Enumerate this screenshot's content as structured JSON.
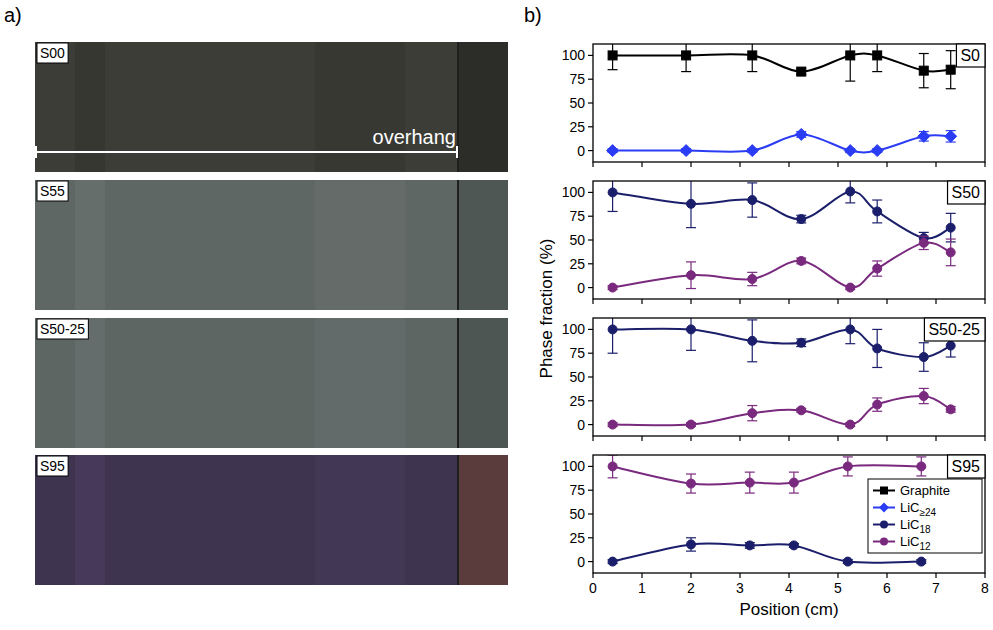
{
  "panel_labels": [
    "a)",
    "b)"
  ],
  "photos": [
    {
      "label": "S00"
    },
    {
      "label": "S55"
    },
    {
      "label": "S50-25"
    },
    {
      "label": "S95"
    }
  ],
  "overhang_label": "overhang",
  "ylabel": "Phase fraction (%)",
  "chart_data": [
    {
      "type": "line",
      "title": "S0",
      "x": [
        0.4,
        1.9,
        3.25,
        4.25,
        5.25,
        5.8,
        6.75,
        7.3
      ],
      "xlim": [
        0,
        8
      ],
      "xticks": [
        0,
        1,
        2,
        3,
        4,
        5,
        6,
        7,
        8
      ],
      "ylim": [
        -12,
        112
      ],
      "yticks": [
        0,
        25,
        50,
        75,
        100
      ],
      "tick_labels": "y",
      "series": [
        {
          "name": "Graphite",
          "color": "#000000",
          "marker": "square",
          "values": [
            100,
            100,
            100,
            83,
            100,
            100,
            84,
            85
          ],
          "errors": [
            15,
            17,
            17,
            3,
            27,
            17,
            18,
            20
          ]
        },
        {
          "name": "LiC≥24",
          "color": "#2b3cf5",
          "marker": "diamond",
          "values": [
            0,
            0,
            0,
            17,
            0,
            0,
            15,
            15
          ],
          "errors": [
            2,
            2,
            2,
            3,
            2,
            2,
            5,
            6
          ]
        }
      ]
    },
    {
      "type": "line",
      "title": "S50",
      "x": [
        0.4,
        2.0,
        3.25,
        4.25,
        5.25,
        5.8,
        6.75,
        7.3
      ],
      "xlim": [
        0,
        8
      ],
      "xticks": [
        0,
        1,
        2,
        3,
        4,
        5,
        6,
        7,
        8
      ],
      "ylim": [
        -12,
        112
      ],
      "yticks": [
        0,
        25,
        50,
        75,
        100
      ],
      "tick_labels": "y",
      "series": [
        {
          "name": "LiC18",
          "color": "#1b1f6b",
          "marker": "circle",
          "values": [
            100,
            88,
            92,
            72,
            101,
            80,
            52,
            63
          ],
          "errors": [
            20,
            25,
            18,
            4,
            12,
            12,
            6,
            15
          ]
        },
        {
          "name": "LiC12",
          "color": "#7a2a7e",
          "marker": "circle",
          "values": [
            0,
            13,
            9,
            28,
            0,
            20,
            47,
            37
          ],
          "errors": [
            2,
            14,
            7,
            3,
            2,
            8,
            7,
            14
          ]
        }
      ]
    },
    {
      "type": "line",
      "title": "S50-25",
      "x": [
        0.4,
        2.0,
        3.25,
        4.25,
        5.25,
        5.8,
        6.75,
        7.3
      ],
      "xlim": [
        0,
        8
      ],
      "xticks": [
        0,
        1,
        2,
        3,
        4,
        5,
        6,
        7,
        8
      ],
      "ylim": [
        -12,
        112
      ],
      "yticks": [
        0,
        25,
        50,
        75,
        100
      ],
      "tick_labels": "y",
      "series": [
        {
          "name": "LiC18",
          "color": "#1b1f6b",
          "marker": "circle",
          "values": [
            100,
            100,
            88,
            86,
            100,
            80,
            71,
            83
          ],
          "errors": [
            25,
            22,
            22,
            4,
            15,
            20,
            15,
            12
          ]
        },
        {
          "name": "LiC12",
          "color": "#7a2a7e",
          "marker": "circle",
          "values": [
            0,
            0,
            12,
            15,
            0,
            21,
            30,
            16
          ],
          "errors": [
            2,
            2,
            8,
            2,
            2,
            7,
            8,
            3
          ]
        }
      ]
    },
    {
      "type": "line",
      "title": "S95",
      "x": [
        0.4,
        2.0,
        3.2,
        4.1,
        5.2,
        6.7
      ],
      "xlim": [
        0,
        8
      ],
      "xticks": [
        0,
        1,
        2,
        3,
        4,
        5,
        6,
        7,
        8
      ],
      "ylim": [
        -12,
        112
      ],
      "yticks": [
        0,
        25,
        50,
        75,
        100
      ],
      "xlabel": "Position (cm)",
      "legend": "lower right",
      "series": [
        {
          "name": "LiC12",
          "color": "#7a2a7e",
          "marker": "circle",
          "values": [
            100,
            82,
            83,
            83,
            100,
            100
          ],
          "errors": [
            12,
            10,
            11,
            11,
            10,
            10
          ]
        },
        {
          "name": "LiC18",
          "color": "#1b1f6b",
          "marker": "circle",
          "values": [
            0,
            18,
            17,
            17,
            0,
            0
          ],
          "errors": [
            2,
            7,
            3,
            2,
            2,
            2
          ]
        }
      ]
    }
  ]
}
